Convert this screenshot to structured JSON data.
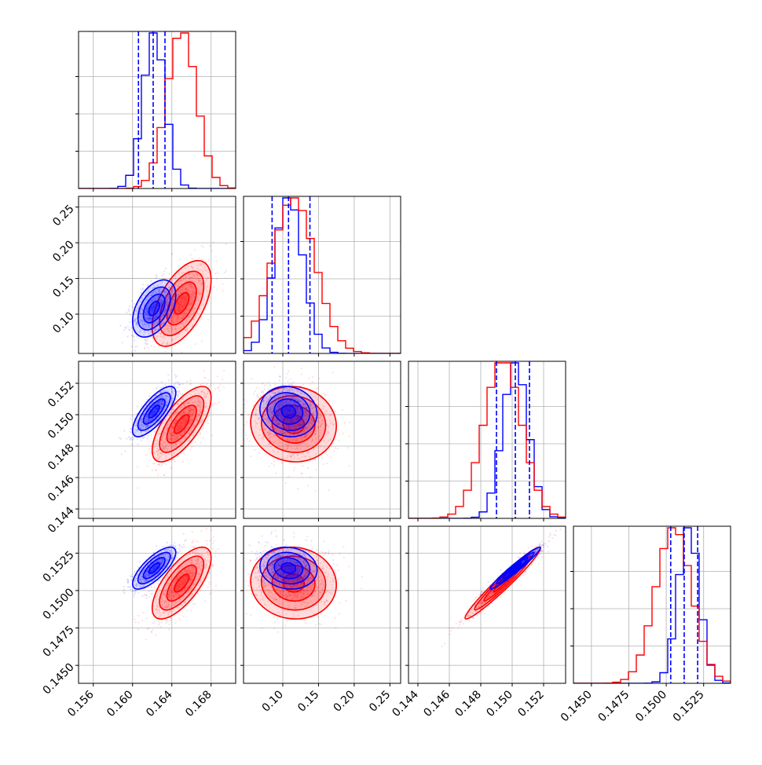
{
  "chart_data": {
    "type": "corner",
    "colors": {
      "blue": "#0000ff",
      "red": "#ff0000",
      "grid": "#b0b0b0"
    },
    "params": [
      {
        "range": [
          0.1545,
          0.1705
        ],
        "ticks": [
          "0.156",
          "0.160",
          "0.164",
          "0.168"
        ],
        "tick_values": [
          0.156,
          0.16,
          0.164,
          0.168
        ]
      },
      {
        "range": [
          0.045,
          0.265
        ],
        "ticks": [
          "0.10",
          "0.15",
          "0.20",
          "0.25"
        ],
        "tick_values": [
          0.1,
          0.15,
          0.2,
          0.25
        ]
      },
      {
        "range": [
          0.1434,
          0.1534
        ],
        "ticks": [
          "0.144",
          "0.146",
          "0.148",
          "0.150",
          "0.152"
        ],
        "tick_values": [
          0.144,
          0.146,
          0.148,
          0.15,
          0.152
        ]
      },
      {
        "range": [
          0.1438,
          0.1543
        ],
        "ticks": [
          "0.1450",
          "0.1475",
          "0.1500",
          "0.1525"
        ],
        "tick_values": [
          0.145,
          0.1475,
          0.15,
          0.1525
        ]
      }
    ],
    "series": [
      {
        "color": "blue",
        "mean": [
          0.1622,
          0.108,
          0.1502,
          0.1515
        ],
        "std": [
          0.0011,
          0.02,
          0.0008,
          0.0007
        ],
        "quantiles": [
          [
            0.1606,
            0.1621,
            0.1633
          ],
          [
            0.085,
            0.108,
            0.138
          ],
          [
            0.149,
            0.1502,
            0.1511
          ],
          [
            0.1503,
            0.1512,
            0.1521
          ]
        ]
      },
      {
        "color": "red",
        "mean": [
          0.165,
          0.115,
          0.1494,
          0.1505
        ],
        "std": [
          0.0015,
          0.03,
          0.0012,
          0.0012
        ]
      }
    ]
  }
}
